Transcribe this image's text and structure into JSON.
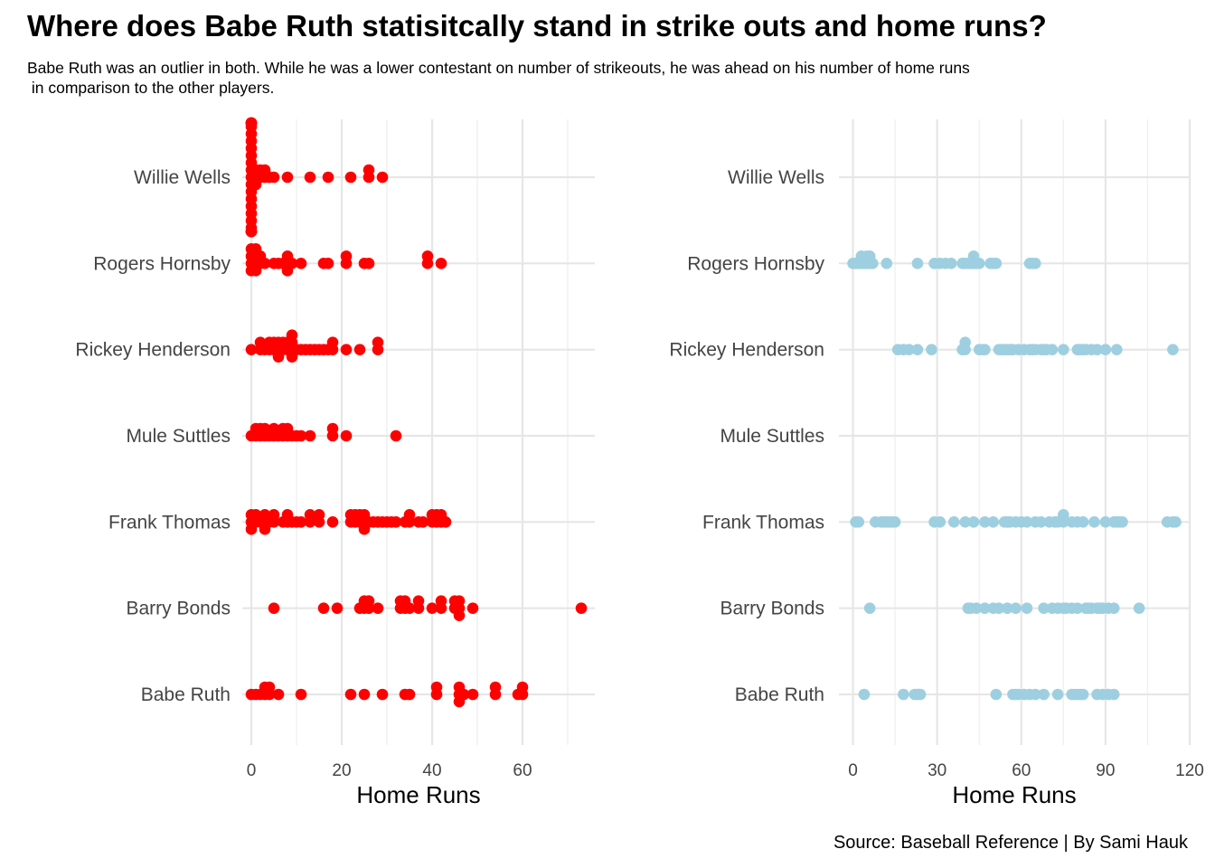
{
  "title": "Where does Babe Ruth statisitcally stand in strike outs and home runs?",
  "subtitle": "Babe Ruth was an outlier in both. While he was a lower contestant on number of strikeouts, he was ahead on his number of home runs\n in comparison to the other players.",
  "caption": "Source: Baseball Reference | By Sami Hauk",
  "colors": {
    "left_points": "#ff0000",
    "right_points": "#9ecfe0",
    "grid": "#e6e6e6"
  },
  "chart_data": [
    {
      "type": "scatter",
      "title": "",
      "xlabel": "Home Runs",
      "ylabel": "",
      "xlim": [
        -2,
        76
      ],
      "xticks": [
        0,
        20,
        40,
        60
      ],
      "categories": [
        "Babe Ruth",
        "Barry Bonds",
        "Frank Thomas",
        "Mule Suttles",
        "Rickey Henderson",
        "Rogers Hornsby",
        "Willie Wells"
      ],
      "grid": true,
      "legend": "none",
      "series": [
        {
          "category": "Willie Wells",
          "values": [
            0,
            0,
            0,
            0,
            0,
            0,
            0,
            0,
            0,
            0,
            0,
            0,
            0,
            0,
            0,
            0,
            0,
            0,
            0,
            0,
            0,
            0,
            0,
            0,
            0,
            0,
            0,
            1,
            1,
            1,
            2,
            2,
            3,
            3,
            4,
            5,
            8,
            13,
            17,
            22,
            26,
            26,
            29
          ]
        },
        {
          "category": "Rogers Hornsby",
          "values": [
            0,
            0,
            0,
            0,
            1,
            1,
            1,
            1,
            2,
            2,
            3,
            5,
            6,
            7,
            8,
            8,
            8,
            9,
            11,
            16,
            17,
            21,
            21,
            25,
            26,
            39,
            39,
            42
          ]
        },
        {
          "category": "Rickey Henderson",
          "values": [
            0,
            2,
            2,
            3,
            4,
            4,
            5,
            5,
            6,
            6,
            6,
            7,
            7,
            8,
            8,
            9,
            9,
            9,
            9,
            10,
            11,
            12,
            13,
            14,
            15,
            16,
            17,
            18,
            18,
            21,
            24,
            28,
            28
          ]
        },
        {
          "category": "Mule Suttles",
          "values": [
            0,
            1,
            1,
            2,
            2,
            3,
            3,
            4,
            5,
            5,
            6,
            7,
            7,
            8,
            8,
            9,
            10,
            11,
            13,
            18,
            18,
            21,
            32
          ]
        },
        {
          "category": "Frank Thomas",
          "values": [
            0,
            0,
            0,
            1,
            1,
            2,
            3,
            3,
            3,
            4,
            5,
            5,
            7,
            8,
            8,
            9,
            10,
            11,
            13,
            13,
            15,
            15,
            18,
            22,
            22,
            23,
            23,
            24,
            24,
            25,
            25,
            25,
            26,
            27,
            28,
            29,
            30,
            31,
            32,
            34,
            35,
            35,
            37,
            38,
            40,
            40,
            41,
            41,
            42,
            42,
            43
          ]
        },
        {
          "category": "Barry Bonds",
          "values": [
            5,
            16,
            19,
            24,
            25,
            25,
            26,
            26,
            28,
            33,
            33,
            34,
            34,
            35,
            37,
            37,
            40,
            42,
            42,
            45,
            45,
            46,
            46,
            46,
            49,
            73
          ]
        },
        {
          "category": "Babe Ruth",
          "values": [
            0,
            1,
            2,
            3,
            3,
            4,
            4,
            6,
            11,
            22,
            25,
            29,
            34,
            35,
            41,
            41,
            46,
            46,
            46,
            47,
            49,
            54,
            54,
            59,
            60,
            60
          ]
        }
      ]
    },
    {
      "type": "scatter",
      "title": "",
      "xlabel": "Home Runs",
      "ylabel": "",
      "xlim": [
        -5,
        120
      ],
      "xticks": [
        0,
        30,
        60,
        90,
        120
      ],
      "categories": [
        "Babe Ruth",
        "Barry Bonds",
        "Frank Thomas",
        "Mule Suttles",
        "Rickey Henderson",
        "Rogers Hornsby",
        "Willie Wells"
      ],
      "grid": true,
      "legend": "none",
      "series": [
        {
          "category": "Willie Wells",
          "values": []
        },
        {
          "category": "Rogers Hornsby",
          "values": [
            0,
            1,
            2,
            3,
            3,
            4,
            5,
            5,
            6,
            6,
            7,
            12,
            23,
            29,
            31,
            33,
            35,
            39,
            40,
            41,
            42,
            43,
            43,
            44,
            45,
            49,
            50,
            51,
            63,
            64,
            65
          ]
        },
        {
          "category": "Rickey Henderson",
          "values": [
            16,
            18,
            20,
            23,
            28,
            39,
            40,
            40,
            45,
            46,
            47,
            52,
            53,
            54,
            55,
            56,
            57,
            59,
            61,
            63,
            64,
            65,
            67,
            68,
            69,
            71,
            75,
            80,
            81,
            82,
            83,
            85,
            87,
            90,
            94,
            114
          ]
        },
        {
          "category": "Mule Suttles",
          "values": []
        },
        {
          "category": "Frank Thomas",
          "values": [
            1,
            2,
            8,
            10,
            11,
            12,
            13,
            14,
            15,
            29,
            31,
            36,
            40,
            43,
            47,
            50,
            54,
            55,
            56,
            58,
            60,
            62,
            65,
            67,
            70,
            72,
            73,
            75,
            75,
            78,
            80,
            82,
            86,
            90,
            93,
            94,
            95,
            96,
            112,
            114,
            115
          ]
        },
        {
          "category": "Barry Bonds",
          "values": [
            6,
            41,
            42,
            44,
            47,
            50,
            52,
            55,
            58,
            62,
            68,
            71,
            73,
            75,
            76,
            78,
            80,
            83,
            84,
            85,
            87,
            88,
            89,
            91,
            93,
            102
          ]
        },
        {
          "category": "Babe Ruth",
          "values": [
            4,
            18,
            22,
            23,
            24,
            51,
            57,
            58,
            59,
            61,
            63,
            65,
            68,
            73,
            78,
            79,
            80,
            81,
            82,
            87,
            89,
            91,
            93
          ]
        }
      ]
    }
  ]
}
